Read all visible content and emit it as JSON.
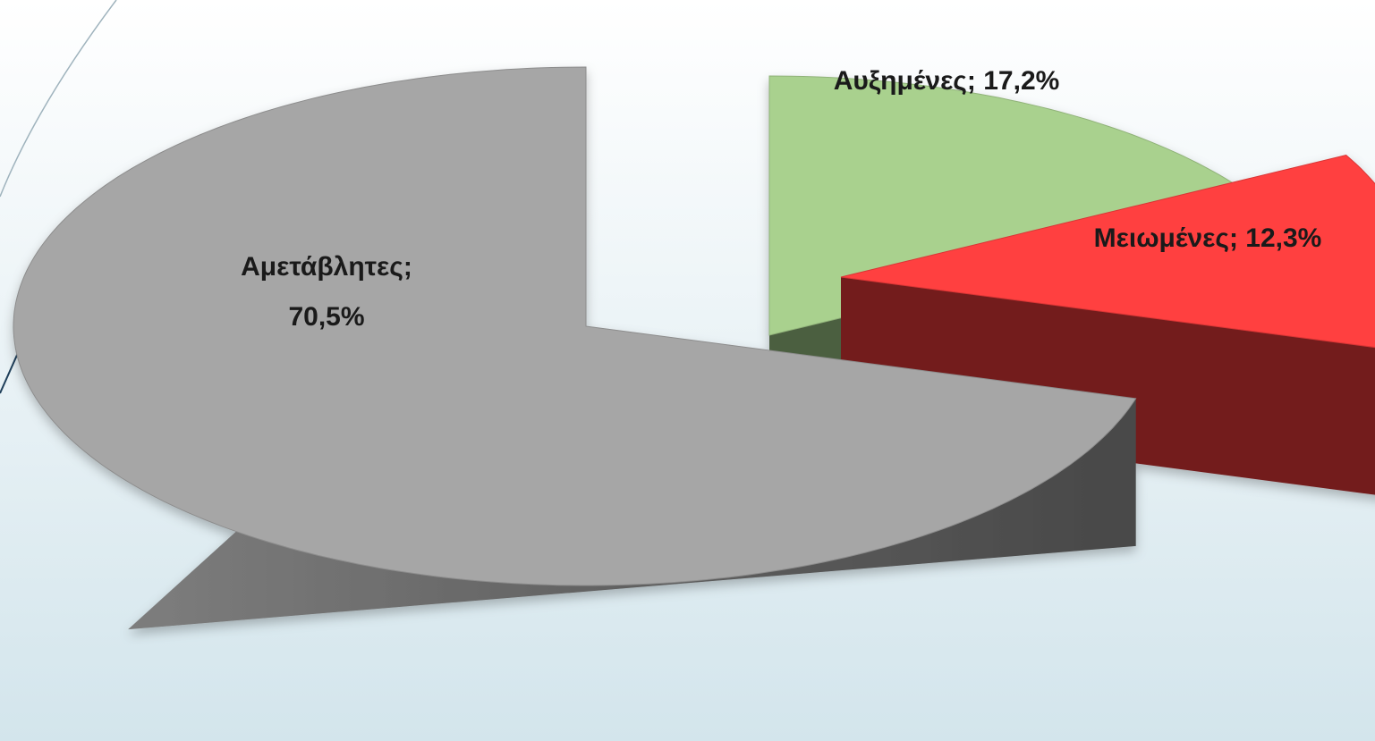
{
  "chart_data": {
    "type": "pie3d",
    "values": [
      17.2,
      12.3,
      70.5
    ],
    "value_labels": [
      "Αυξημένες; 17,2%",
      "Μειωμένες; 12,3%",
      "Αμετάβλητες; 70,5%"
    ],
    "colors": [
      "#a9d18e",
      "#ff4040",
      "#a6a6a6"
    ]
  }
}
